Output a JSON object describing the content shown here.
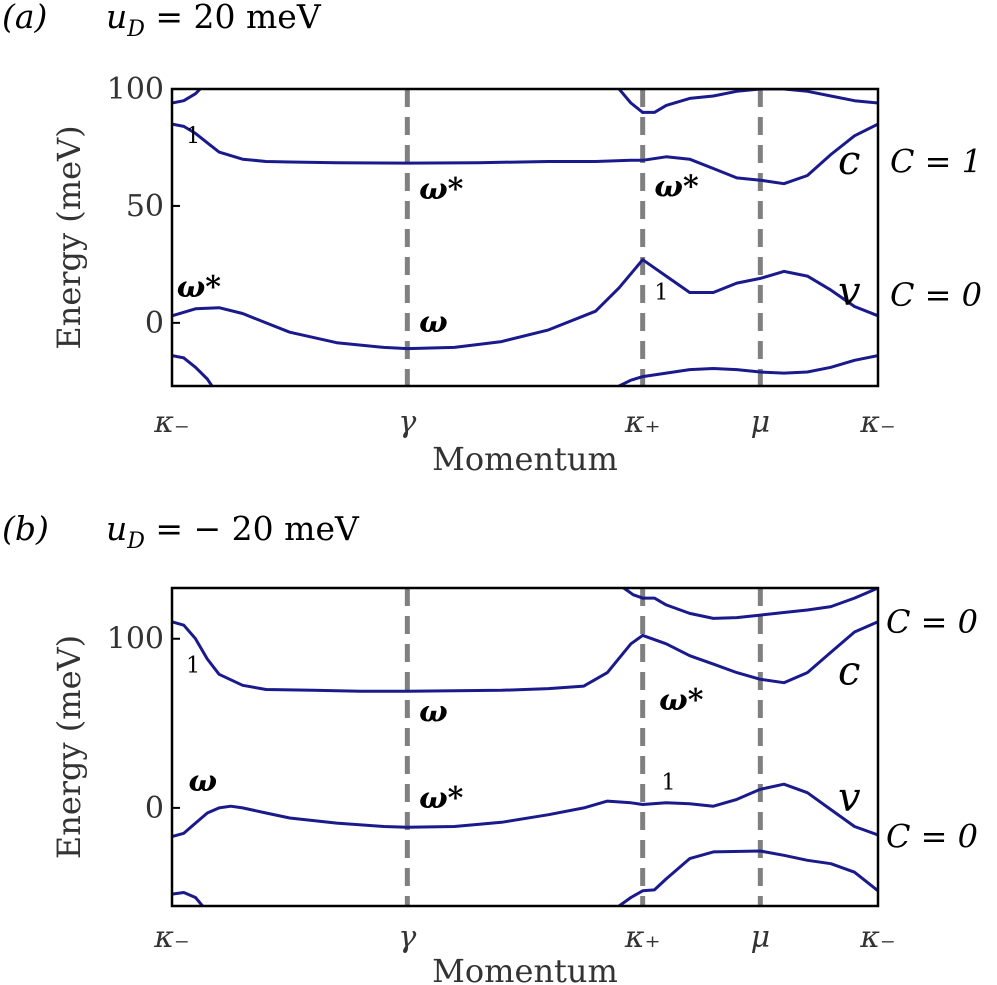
{
  "chart_data": [
    {
      "type": "line",
      "panel_label": "(a)",
      "title": "u_D = 20 meV",
      "title_parts": {
        "sym": "u",
        "sub": "D",
        "rest": " = 20 meV"
      },
      "xlabel": "Momentum",
      "ylabel": "Energy (meV)",
      "ylim": [
        -27,
        100
      ],
      "xlim": [
        0,
        3.0
      ],
      "yticks": [
        0,
        50,
        100
      ],
      "ytick_labels": [
        "0",
        "50",
        "100"
      ],
      "xticks": [
        0,
        1.0,
        2.0,
        2.5,
        3.0
      ],
      "xtick_labels": [
        "κ₋",
        "γ",
        "κ₊",
        "μ",
        "κ₋"
      ],
      "vlines": [
        1.0,
        2.0,
        2.5
      ],
      "series": [
        {
          "x": [
            0,
            0.05,
            0.1,
            0.15,
            0.2,
            0.3,
            0.4,
            0.5,
            0.7,
            1.0,
            1.3,
            1.6,
            1.8,
            1.95,
            2.0,
            2.1,
            2.2,
            2.3,
            2.4,
            2.5,
            2.6,
            2.7,
            2.8,
            2.9,
            3.0
          ],
          "y": [
            85,
            84,
            81,
            77,
            73,
            70,
            69,
            68.8,
            68.5,
            68.3,
            68.5,
            69,
            69,
            69.5,
            69.5,
            71,
            70,
            66,
            62,
            61,
            59.5,
            63,
            72,
            80,
            85
          ]
        },
        {
          "x": [
            0,
            0.1,
            0.2,
            0.3,
            0.4,
            0.5,
            0.7,
            0.9,
            1.0,
            1.2,
            1.4,
            1.6,
            1.8,
            1.9,
            2.0,
            2.1,
            2.2,
            2.3,
            2.4,
            2.5,
            2.6,
            2.7,
            2.8,
            2.9,
            3.0
          ],
          "y": [
            3,
            6,
            6.5,
            4,
            0,
            -4,
            -8.5,
            -10.5,
            -11,
            -10.5,
            -8,
            -3,
            5,
            15,
            27,
            20,
            13,
            13,
            17,
            19,
            22,
            20,
            14,
            7,
            3
          ]
        },
        {
          "x": [
            2.0,
            2.05,
            2.1,
            2.2,
            2.3,
            2.4,
            2.5,
            2.6,
            2.7,
            2.8,
            2.9,
            3.0
          ],
          "y": [
            90,
            90,
            93,
            96,
            97,
            99,
            100,
            100,
            99,
            97,
            95,
            94
          ]
        },
        {
          "x": [
            1.9,
            1.95,
            2.0
          ],
          "y": [
            100,
            94,
            90
          ]
        },
        {
          "x": [
            0,
            0.05,
            0.1,
            0.12
          ],
          "y": [
            94,
            95,
            98,
            100
          ]
        },
        {
          "x": [
            0,
            0.05,
            0.1,
            0.15,
            0.17
          ],
          "y": [
            -14,
            -15,
            -19,
            -24,
            -27
          ]
        },
        {
          "x": [
            1.9,
            1.95,
            2.0,
            2.1,
            2.2,
            2.3,
            2.4,
            2.5,
            2.6,
            2.7,
            2.8,
            2.9,
            3.0
          ],
          "y": [
            -27,
            -24.5,
            -23,
            -21.5,
            -20,
            -19.5,
            -20,
            -21,
            -21.5,
            -21,
            -19,
            -16,
            -14
          ]
        }
      ],
      "annotations": [
        {
          "text": "1",
          "x": 0.06,
          "y": 77,
          "style": "small"
        },
        {
          "text": "ω*",
          "x": 1.05,
          "y": 53,
          "style": "greek"
        },
        {
          "text": "ω*",
          "x": 2.05,
          "y": 54,
          "style": "greek"
        },
        {
          "text": "ω*",
          "x": 0.02,
          "y": 11,
          "style": "greek"
        },
        {
          "text": "ω",
          "x": 1.05,
          "y": -4,
          "style": "greek"
        },
        {
          "text": "1",
          "x": 2.05,
          "y": 10,
          "style": "small"
        }
      ],
      "band_labels": [
        {
          "text": "c",
          "y": 68
        },
        {
          "text": "v",
          "y": 12
        }
      ],
      "chern_labels": [
        {
          "text": "C = 1",
          "y": 69
        },
        {
          "text": "C = 0",
          "y": 12
        }
      ]
    },
    {
      "type": "line",
      "panel_label": "(b)",
      "title": "u_D = − 20 meV",
      "title_parts": {
        "sym": "u",
        "sub": "D",
        "rest": " = − 20 meV"
      },
      "xlabel": "Momentum",
      "ylabel": "Energy (meV)",
      "ylim": [
        -58,
        130
      ],
      "xlim": [
        0,
        3.0
      ],
      "yticks": [
        0,
        100
      ],
      "ytick_labels": [
        "0",
        "100"
      ],
      "xticks": [
        0,
        1.0,
        2.0,
        2.5,
        3.0
      ],
      "xtick_labels": [
        "κ₋",
        "γ",
        "κ₊",
        "μ",
        "κ₋"
      ],
      "vlines": [
        1.0,
        2.0,
        2.5
      ],
      "series": [
        {
          "x": [
            0,
            0.05,
            0.1,
            0.15,
            0.2,
            0.3,
            0.4,
            0.6,
            0.8,
            1.0,
            1.2,
            1.4,
            1.6,
            1.75,
            1.85,
            1.95,
            2.0,
            2.1,
            2.2,
            2.3,
            2.4,
            2.5,
            2.6,
            2.7,
            2.8,
            2.9,
            3.0
          ],
          "y": [
            110,
            108,
            100,
            88,
            79,
            72.5,
            70,
            69.5,
            69,
            69,
            69.2,
            69.5,
            70.5,
            72,
            80,
            97,
            102,
            97,
            90,
            85,
            80,
            76,
            74,
            80,
            92,
            104,
            110
          ]
        },
        {
          "x": [
            0,
            0.05,
            0.1,
            0.15,
            0.2,
            0.25,
            0.3,
            0.4,
            0.5,
            0.7,
            0.9,
            1.0,
            1.2,
            1.4,
            1.6,
            1.75,
            1.85,
            1.95,
            2.0,
            2.1,
            2.2,
            2.3,
            2.4,
            2.5,
            2.6,
            2.7,
            2.8,
            2.9,
            3.0
          ],
          "y": [
            -17,
            -15,
            -9,
            -3,
            0,
            1,
            0,
            -3,
            -6,
            -9,
            -11,
            -11.5,
            -11,
            -8.5,
            -4,
            0,
            4,
            3,
            2,
            3,
            2.5,
            1,
            5,
            11,
            14,
            9,
            -1,
            -11,
            -16
          ]
        },
        {
          "x": [
            2.0,
            2.05,
            2.1,
            2.2,
            2.3,
            2.4,
            2.5,
            2.6,
            2.7,
            2.8,
            2.9,
            2.95,
            3.0
          ],
          "y": [
            124,
            124,
            120,
            115,
            112,
            112.5,
            114,
            115.5,
            117,
            119,
            124,
            127,
            130
          ]
        },
        {
          "x": [
            1.92,
            1.96,
            2.0
          ],
          "y": [
            130,
            126,
            124
          ]
        },
        {
          "x": [
            0,
            0.05,
            0.1,
            0.13
          ],
          "y": [
            -51,
            -50,
            -53,
            -58
          ]
        },
        {
          "x": [
            1.9,
            1.95,
            2.0,
            2.05,
            2.1,
            2.2,
            2.3,
            2.5,
            2.6,
            2.7,
            2.8,
            2.9,
            3.0
          ],
          "y": [
            -58,
            -53,
            -49,
            -48.5,
            -42,
            -30,
            -26,
            -25.5,
            -28,
            -31,
            -33,
            -38,
            -49
          ]
        }
      ],
      "annotations": [
        {
          "text": "1",
          "x": 0.06,
          "y": 80,
          "style": "small"
        },
        {
          "text": "ω",
          "x": 1.05,
          "y": 51,
          "style": "greek"
        },
        {
          "text": "ω*",
          "x": 2.07,
          "y": 58,
          "style": "greek"
        },
        {
          "text": "ω",
          "x": 0.07,
          "y": 10,
          "style": "greek"
        },
        {
          "text": "ω*",
          "x": 1.05,
          "y": 0,
          "style": "greek"
        },
        {
          "text": "1",
          "x": 2.08,
          "y": 11,
          "style": "small"
        }
      ],
      "band_labels": [
        {
          "text": "c",
          "y": 79
        },
        {
          "text": "v",
          "y": 4
        }
      ],
      "chern_labels": [
        {
          "text": "C = 0",
          "y": 110
        },
        {
          "text": "C = 0",
          "y": -17
        }
      ]
    }
  ],
  "colors": {
    "band": "#1a1a8c",
    "vline": "#808080",
    "axis": "#000000",
    "text": "#000000",
    "tick_text": "#333333"
  }
}
